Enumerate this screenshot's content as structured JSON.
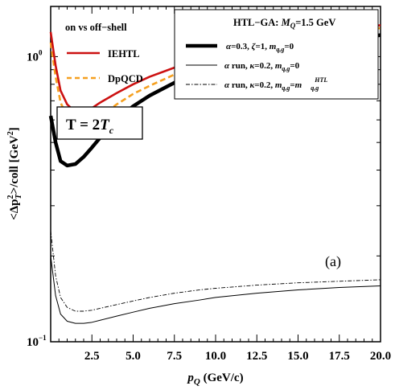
{
  "chart_data": {
    "type": "line",
    "xlabel": "p_Q (GeV/c)",
    "ylabel": "<Δp_T^2>/coll [GeV^2]",
    "xlim": [
      0.0,
      20.0
    ],
    "ylim": [
      0.1,
      1.5
    ],
    "y_scale": "log",
    "x_ticks": [
      2.5,
      5.0,
      7.5,
      10.0,
      12.5,
      15.0,
      17.5,
      20.0
    ],
    "x_tick_labels": [
      "2.5",
      "5.0",
      "7.5",
      "10.0",
      "12.5",
      "15.0",
      "17.5",
      "20.0"
    ],
    "y_tick_labels": [
      {
        "value": 0.1,
        "base": "10",
        "exp": "−1"
      },
      {
        "value": 1.0,
        "base": "10",
        "exp": "0"
      }
    ],
    "grid": false,
    "legends": [
      {
        "title": "on vs off−shell",
        "placement": "top-left",
        "entries": [
          "IEHTL",
          "DpQCD"
        ]
      },
      {
        "title": "HTL−GA: M_Q=1.5 GeV",
        "placement": "top-right",
        "entries": [
          "α=0.3, ζ=1, m_q,g=0",
          "α run, κ=0.2, m_q,g=0",
          "α run, κ=0.2, m_q,g=m_q,g^HTL"
        ]
      }
    ],
    "annotations": [
      "T = 2T_c",
      "(a)"
    ],
    "series": [
      {
        "name": "IEHTL",
        "color": "#cc1111",
        "style": "solid",
        "x": [
          0.0,
          0.3,
          0.6,
          1.0,
          1.5,
          2.0,
          2.5,
          3.0,
          4.0,
          5.0,
          6.0,
          7.5,
          9.0,
          10.0,
          12.5,
          15.0,
          17.5,
          20.0
        ],
        "values": [
          1.22,
          0.93,
          0.76,
          0.68,
          0.64,
          0.645,
          0.66,
          0.69,
          0.745,
          0.8,
          0.85,
          0.915,
          0.975,
          1.01,
          1.09,
          1.16,
          1.22,
          1.29
        ]
      },
      {
        "name": "DpQCD",
        "color": "#f5a020",
        "style": "dashed",
        "x": [
          0.0,
          0.3,
          0.6,
          1.0,
          1.5,
          2.0,
          2.5,
          3.0,
          4.0,
          5.0,
          6.0,
          7.5,
          9.0,
          10.0,
          12.5,
          15.0,
          17.5,
          20.0
        ],
        "values": [
          1.12,
          0.85,
          0.69,
          0.615,
          0.575,
          0.57,
          0.585,
          0.615,
          0.68,
          0.74,
          0.79,
          0.865,
          0.93,
          0.97,
          1.05,
          1.125,
          1.19,
          1.26
        ]
      },
      {
        "name": "α=0.3, ζ=1, m_q,g=0",
        "color": "#000000",
        "style": "thick",
        "x": [
          0.0,
          0.3,
          0.6,
          1.0,
          1.5,
          2.0,
          2.5,
          3.0,
          4.0,
          5.0,
          6.0,
          7.5,
          9.0,
          10.0,
          12.5,
          15.0,
          17.5,
          20.0
        ],
        "values": [
          0.62,
          0.5,
          0.43,
          0.415,
          0.42,
          0.445,
          0.48,
          0.52,
          0.6,
          0.67,
          0.73,
          0.81,
          0.88,
          0.92,
          1.0,
          1.07,
          1.13,
          1.19
        ]
      },
      {
        "name": "α run, κ=0.2, m_q,g=0",
        "color": "#000000",
        "style": "thin",
        "x": [
          0.0,
          0.3,
          0.6,
          1.0,
          1.5,
          2.0,
          2.5,
          3.0,
          4.0,
          5.0,
          6.0,
          7.5,
          9.0,
          10.0,
          12.5,
          15.0,
          17.5,
          20.0
        ],
        "values": [
          0.2,
          0.145,
          0.125,
          0.118,
          0.116,
          0.116,
          0.117,
          0.119,
          0.123,
          0.127,
          0.131,
          0.136,
          0.14,
          0.143,
          0.148,
          0.152,
          0.155,
          0.157
        ]
      },
      {
        "name": "α run, κ=0.2, m_q,g=m_q,g^HTL",
        "color": "#000000",
        "style": "dashdot",
        "x": [
          0.0,
          0.3,
          0.6,
          1.0,
          1.5,
          2.0,
          2.5,
          3.0,
          4.0,
          5.0,
          6.0,
          7.5,
          9.0,
          10.0,
          12.5,
          15.0,
          17.5,
          20.0
        ],
        "values": [
          0.245,
          0.17,
          0.143,
          0.132,
          0.128,
          0.128,
          0.129,
          0.131,
          0.135,
          0.139,
          0.143,
          0.148,
          0.152,
          0.154,
          0.158,
          0.161,
          0.163,
          0.165
        ]
      }
    ]
  }
}
